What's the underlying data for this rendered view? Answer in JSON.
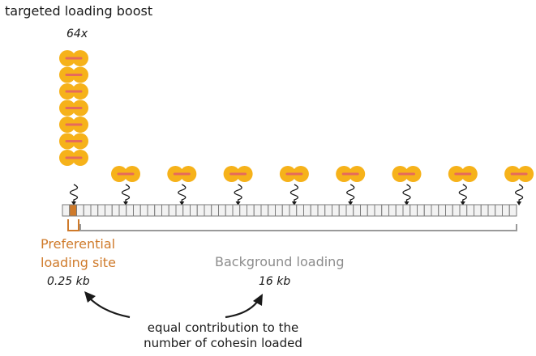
{
  "labels": {
    "title": "targeted loading boost",
    "boost": "64x",
    "preferential_line1": "Preferential",
    "preferential_line2": "loading site",
    "preferential_size": "0.25 kb",
    "background": "Background loading",
    "background_size": "16 kb",
    "note_line1": "equal contribution to the",
    "note_line2": "number of cohesin loaded"
  },
  "colors": {
    "cohesin_fill": "#f6b21a",
    "cohesin_bar": "#e66a5c",
    "preferential": "#cf7a2a",
    "background": "#8c8c8c",
    "chromatin_fill": "#f2f2f2",
    "chromatin_stroke": "#7a7a7a",
    "text": "#1a1a1a"
  },
  "diagram": {
    "stacked_cohesins_at_site": 7,
    "background_cohesins": 8,
    "chromatin_segments": 64,
    "highlighted_segments": 1
  }
}
